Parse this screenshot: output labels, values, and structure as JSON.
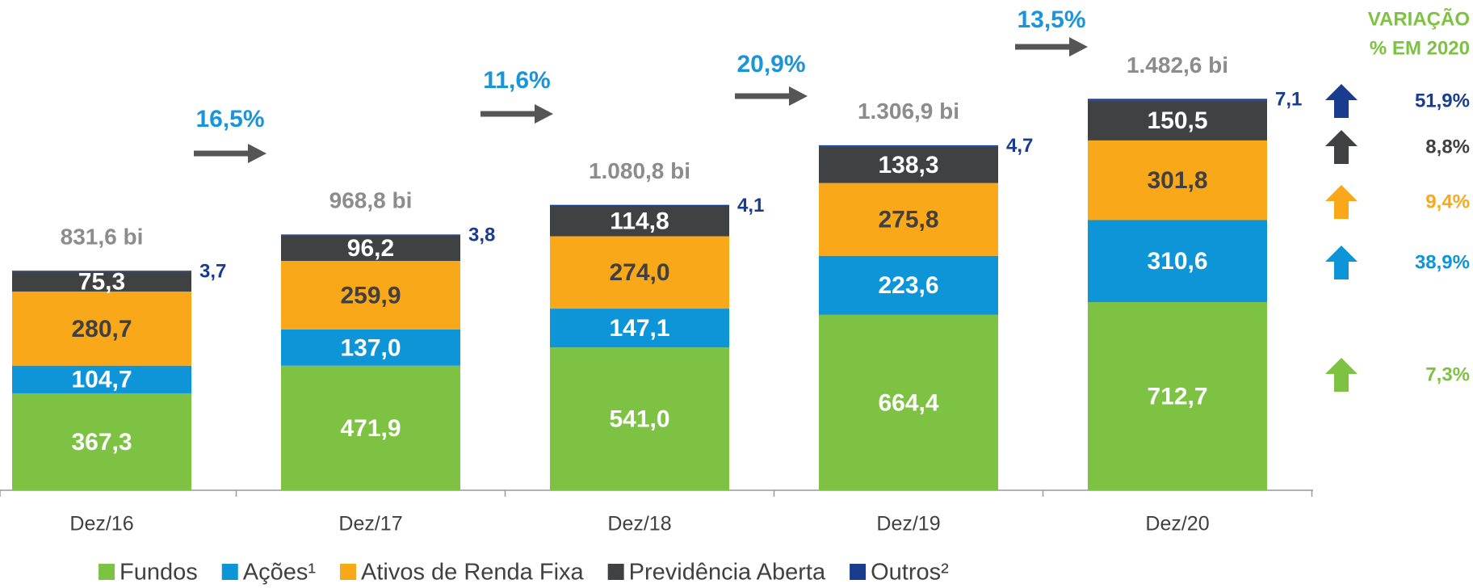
{
  "chart_data": {
    "type": "stacked-bar",
    "categories": [
      "Dez/16",
      "Dez/17",
      "Dez/18",
      "Dez/19",
      "Dez/20"
    ],
    "ylim": [
      0,
      1600
    ],
    "series": [
      {
        "name": "Fundos",
        "color": "#7dc242",
        "values": [
          367.3,
          471.9,
          541.0,
          664.4,
          712.7
        ],
        "value_labels": [
          "367,3",
          "471,9",
          "541,0",
          "664,4",
          "712,7"
        ],
        "change": 7.3,
        "change_label": "7,3%"
      },
      {
        "name": "Ações¹",
        "color": "#0e95d8",
        "values": [
          104.7,
          137.0,
          147.1,
          223.6,
          310.6
        ],
        "value_labels": [
          "104,7",
          "137,0",
          "147,1",
          "223,6",
          "310,6"
        ],
        "change": 38.9,
        "change_label": "38,9%"
      },
      {
        "name": "Ativos de Renda Fixa",
        "color": "#f9a81a",
        "values": [
          280.7,
          259.9,
          274.0,
          275.8,
          301.8
        ],
        "value_labels": [
          "280,7",
          "259,9",
          "274,0",
          "275,8",
          "301,8"
        ],
        "change": 9.4,
        "change_label": "9,4%"
      },
      {
        "name": "Previdência Aberta",
        "color": "#404142",
        "values": [
          75.3,
          96.2,
          114.8,
          138.3,
          150.5
        ],
        "value_labels": [
          "75,3",
          "96,2",
          "114,8",
          "138,3",
          "150,5"
        ],
        "change": 8.8,
        "change_label": "8,8%"
      },
      {
        "name": "Outros²",
        "color": "#1a3c8f",
        "values": [
          3.7,
          3.8,
          4.1,
          4.7,
          7.1
        ],
        "value_labels": [
          "3,7",
          "3,8",
          "4,1",
          "4,7",
          "7,1"
        ],
        "change": 51.9,
        "change_label": "51,9%"
      }
    ],
    "totals": {
      "values": [
        831.6,
        968.8,
        1080.8,
        1306.9,
        1482.6
      ],
      "value_labels": [
        "831,6 bi",
        "968,8 bi",
        "1.080,8 bi",
        "1.306,9 bi",
        "1.482,6 bi"
      ]
    },
    "growth": {
      "values": [
        16.5,
        11.6,
        20.9,
        13.5
      ],
      "value_labels": [
        "16,5%",
        "11,6%",
        "20,9%",
        "13,5%"
      ]
    },
    "variation_title": [
      "VARIAÇÃO",
      "% EM 2020"
    ]
  }
}
